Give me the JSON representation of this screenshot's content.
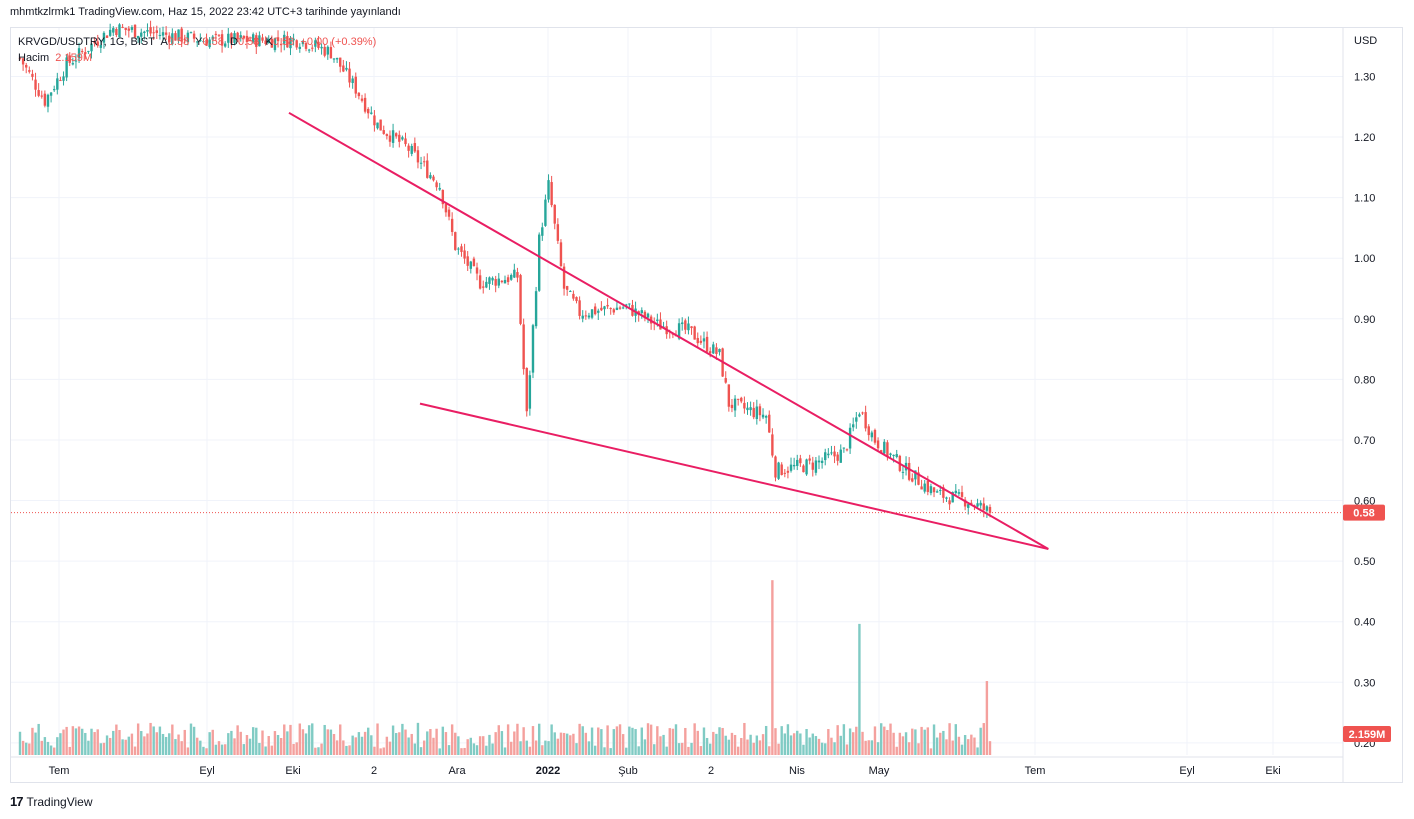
{
  "header": {
    "published_line": "mhmtkzlrmk1 TradingView.com, Haz 15, 2022 23:42 UTC+3 tarihinde yayınlandı"
  },
  "legend": {
    "symbol": "KRVGD/USDTRY, 1G, BIST",
    "o_label": "A",
    "o_value": "0.58",
    "h_label": "Y",
    "h_value": "0.58",
    "l_label": "D",
    "l_value": "0.58",
    "c_label": "K",
    "c_value": "0.58",
    "change": "+0.00 (+0.39%)",
    "volume_label": "Hacim",
    "volume_value": "2.159M"
  },
  "footer": {
    "brand": "TradingView",
    "logo_glyph": "17"
  },
  "colors": {
    "up": "#26a69a",
    "down": "#ef5350",
    "up_vol": "#80cbc4",
    "down_vol": "#f4a09d",
    "trendline": "#e91e63",
    "grid": "#f0f3fa",
    "price_tag": "#ef5350"
  },
  "chart_data": {
    "type": "candlestick",
    "y_unit": "USD",
    "ylim": [
      0.18,
      1.38
    ],
    "y_ticks": [
      "1.30",
      "1.20",
      "1.10",
      "1.00",
      "0.90",
      "0.80",
      "0.70",
      "0.60",
      "0.50",
      "0.40",
      "0.30",
      "0.20"
    ],
    "x_ticks": [
      "Tem",
      "Eyl",
      "Eki",
      "2",
      "Ara",
      "2022",
      "Şub",
      "2",
      "Nis",
      "May",
      "Tem",
      "Eyl",
      "Eki"
    ],
    "last_price_tag": "0.58",
    "volume_tag": "2.159M",
    "grid": true,
    "volume_overlay": true,
    "trendlines": [
      {
        "name": "upper",
        "from": {
          "date": "2021-09-25",
          "price": 1.24
        },
        "to": {
          "date": "2022-07-06",
          "price": 0.52
        }
      },
      {
        "name": "lower",
        "from": {
          "date": "2021-11-13",
          "price": 0.76
        },
        "to": {
          "date": "2022-07-06",
          "price": 0.52
        }
      }
    ],
    "trend_path": [
      [
        0,
        1.33
      ],
      [
        8,
        1.26
      ],
      [
        15,
        1.32
      ],
      [
        30,
        1.38
      ],
      [
        60,
        1.36
      ],
      [
        90,
        1.36
      ],
      [
        100,
        1.34
      ],
      [
        108,
        1.28
      ],
      [
        115,
        1.22
      ],
      [
        125,
        1.18
      ],
      [
        135,
        1.12
      ],
      [
        140,
        1.02
      ],
      [
        148,
        0.96
      ],
      [
        160,
        0.97
      ],
      [
        163,
        0.74
      ],
      [
        167,
        1.03
      ],
      [
        170,
        1.12
      ],
      [
        175,
        0.95
      ],
      [
        180,
        0.91
      ],
      [
        195,
        0.92
      ],
      [
        205,
        0.89
      ],
      [
        215,
        0.88
      ],
      [
        225,
        0.84
      ],
      [
        228,
        0.76
      ],
      [
        240,
        0.74
      ],
      [
        243,
        0.65
      ],
      [
        255,
        0.66
      ],
      [
        265,
        0.68
      ],
      [
        270,
        0.75
      ],
      [
        275,
        0.7
      ],
      [
        285,
        0.65
      ],
      [
        295,
        0.61
      ],
      [
        305,
        0.6
      ],
      [
        312,
        0.58
      ]
    ],
    "volume_ylim": [
      0,
      2.9
    ],
    "volume_spikes": [
      {
        "x": 242,
        "value": 2.6,
        "side": "down"
      },
      {
        "x": 270,
        "value": 1.95,
        "side": "up"
      },
      {
        "x": 311,
        "value": 1.1,
        "side": "down"
      }
    ],
    "volume_base": 0.32,
    "series_length": 313
  }
}
